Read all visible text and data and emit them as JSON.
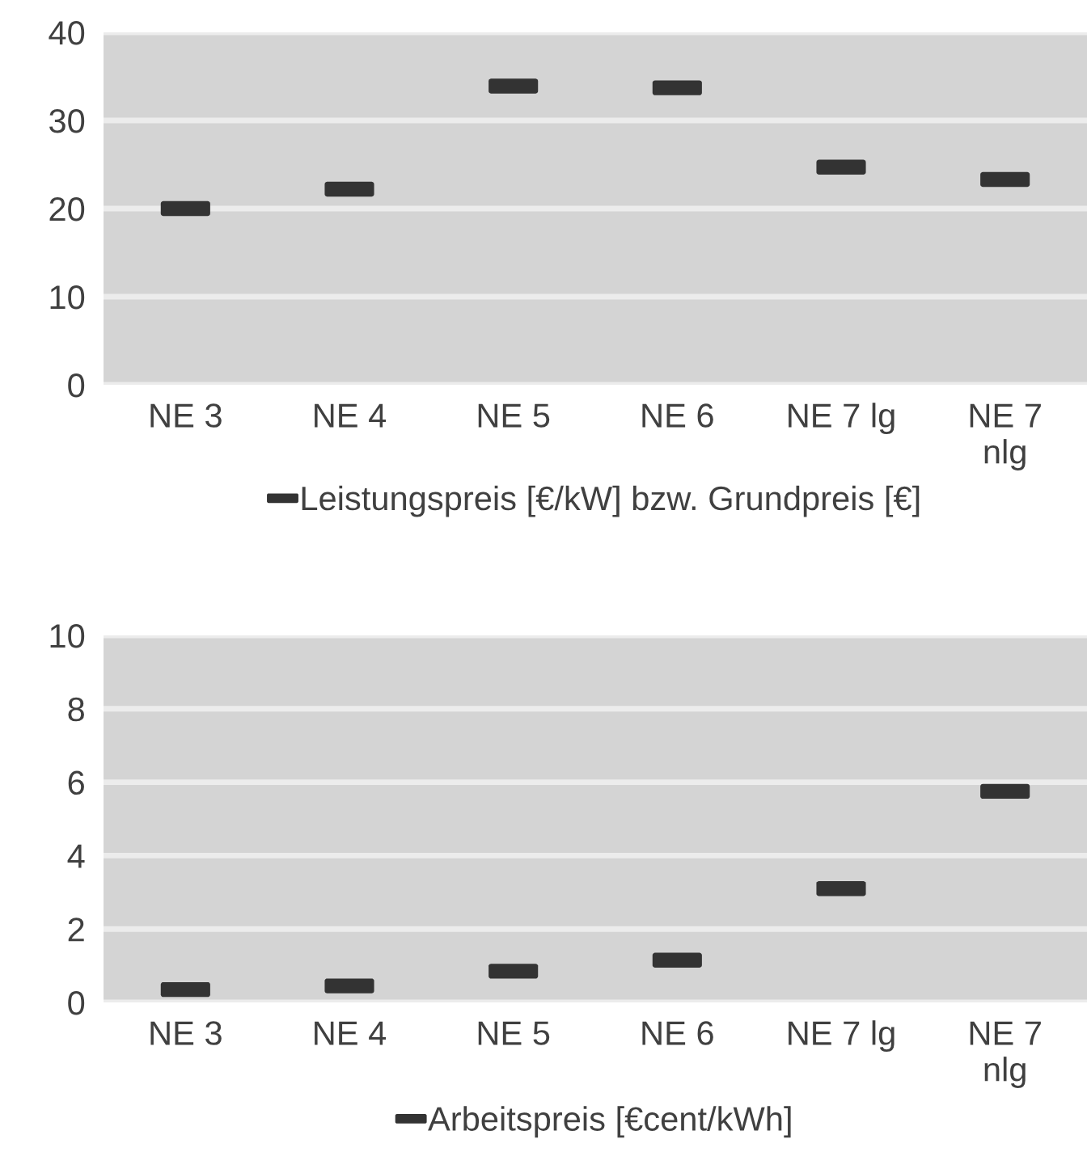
{
  "chart_data": [
    {
      "type": "scatter",
      "categories": [
        "NE 3",
        "NE 4",
        "NE 5",
        "NE 6",
        "NE 7 lg",
        "NE 7\nnlg"
      ],
      "series": [
        {
          "name": "Leistungspreis [€/kW] bzw. Grundpreis [€]",
          "color": "#333333",
          "values": [
            20,
            22.2,
            33.9,
            33.7,
            24.7,
            23.3
          ]
        }
      ],
      "ylim": [
        0,
        40
      ],
      "yticks": [
        0,
        10,
        20,
        30,
        40
      ],
      "grid": "y",
      "legend": "bottom"
    },
    {
      "type": "scatter",
      "categories": [
        "NE 3",
        "NE 4",
        "NE 5",
        "NE 6",
        "NE 7 lg",
        "NE 7\nnlg"
      ],
      "series": [
        {
          "name": "Arbeitspreis [€cent/kWh]",
          "color": "#333333",
          "values": [
            0.35,
            0.45,
            0.85,
            1.15,
            3.1,
            5.75
          ]
        }
      ],
      "ylim": [
        0,
        10
      ],
      "yticks": [
        0,
        2,
        4,
        6,
        8,
        10
      ],
      "grid": "y",
      "legend": "bottom"
    }
  ]
}
